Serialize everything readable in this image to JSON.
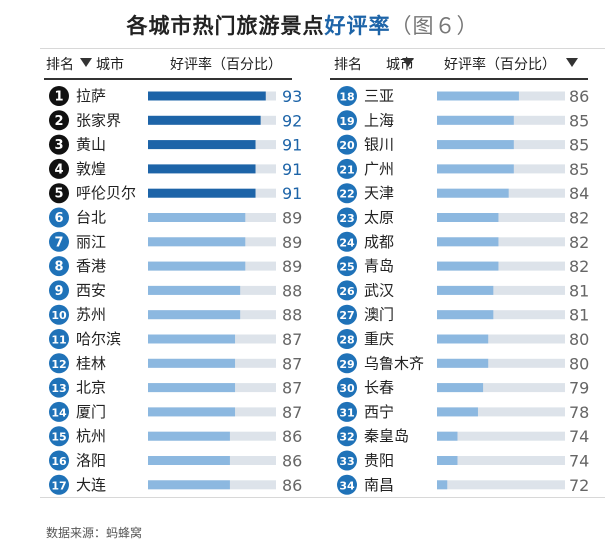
{
  "title": {
    "part1": "各城市热门旅游景点",
    "part2": "好评率",
    "part3": "（图６）"
  },
  "headers": {
    "left": {
      "rank": "排名",
      "city": "城市",
      "rate": "好评率（百分比）"
    },
    "right": {
      "rank": "排名",
      "city": "城市",
      "rate": "好评率（百分比）"
    }
  },
  "source": "数据来源：蚂蜂窝",
  "colors": {
    "dark_bar": "#1d64a8",
    "light_bar": "#8cb8e0",
    "track": "#dde3ea",
    "badge_dark": "#111111",
    "badge_blue": "#1f72b8",
    "value_text": "#666666"
  },
  "chart_data": {
    "type": "bar",
    "title": "各城市热门旅游景点好评率（图６）",
    "unit": "百分比",
    "categories": [
      "拉萨",
      "张家界",
      "黄山",
      "敦煌",
      "呼伦贝尔",
      "台北",
      "丽江",
      "香港",
      "西安",
      "苏州",
      "哈尔滨",
      "桂林",
      "北京",
      "厦门",
      "杭州",
      "洛阳",
      "大连",
      "三亚",
      "上海",
      "银川",
      "广州",
      "天津",
      "太原",
      "成都",
      "青岛",
      "武汉",
      "澳门",
      "重庆",
      "乌鲁木齐",
      "长春",
      "西宁",
      "秦皇岛",
      "贵阳",
      "南昌"
    ],
    "ranks": [
      "1",
      "2",
      "3",
      "4",
      "5",
      "6",
      "7",
      "8",
      "9",
      "10",
      "11",
      "12",
      "13",
      "14",
      "15",
      "16",
      "17",
      "18",
      "19",
      "20",
      "21",
      "22",
      "23",
      "24",
      "25",
      "26",
      "27",
      "28",
      "29",
      "30",
      "31",
      "32",
      "33",
      "34"
    ],
    "values": [
      93,
      92,
      91,
      91,
      91,
      89,
      89,
      89,
      88,
      88,
      87,
      87,
      87,
      87,
      86,
      86,
      86,
      86,
      85,
      85,
      85,
      84,
      82,
      82,
      82,
      81,
      81,
      80,
      80,
      79,
      78,
      74,
      74,
      72
    ],
    "highlighted_count": 5
  }
}
